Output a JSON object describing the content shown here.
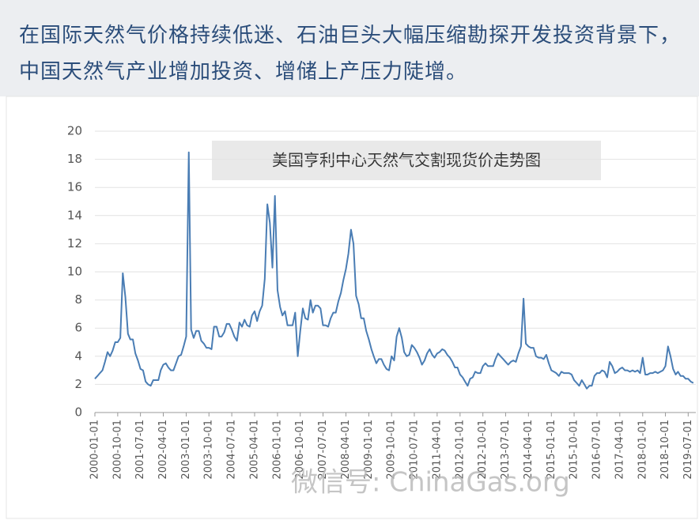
{
  "header": {
    "text": "在国际天然气价格持续低迷、石油巨头大幅压缩勘探开发投资背景下，中国天然气产业增加投资、增储上产压力陡增。"
  },
  "watermark": "微信号: ChinaGas.org",
  "chart_data": {
    "type": "line",
    "title": "美国亨利中心天然气交割现货价走势图",
    "color": "#4a7db4",
    "grid": true,
    "ylim": [
      0,
      20
    ],
    "yticks": [
      0,
      2,
      4,
      6,
      8,
      10,
      12,
      14,
      16,
      18,
      20
    ],
    "xlim": [
      "2000-01-01",
      "2019-10-01"
    ],
    "xticks": [
      "2000-01-01",
      "2000-10-01",
      "2001-07-01",
      "2002-04-01",
      "2003-01-01",
      "2003-10-01",
      "2004-07-01",
      "2005-04-01",
      "2006-01-01",
      "2006-10-01",
      "2007-07-01",
      "2008-04-01",
      "2009-01-01",
      "2009-10-01",
      "2010-07-01",
      "2011-04-01",
      "2012-01-01",
      "2012-10-01",
      "2013-07-01",
      "2014-04-01",
      "2015-01-01",
      "2015-10-01",
      "2016-07-01",
      "2017-04-01",
      "2018-01-01",
      "2018-10-01",
      "2019-07-01"
    ],
    "x": [
      "2000-01-01",
      "2000-02-01",
      "2000-03-01",
      "2000-04-01",
      "2000-05-01",
      "2000-06-01",
      "2000-07-01",
      "2000-08-01",
      "2000-09-01",
      "2000-10-01",
      "2000-11-01",
      "2000-12-01",
      "2001-01-01",
      "2001-02-01",
      "2001-03-01",
      "2001-04-01",
      "2001-05-01",
      "2001-06-01",
      "2001-07-01",
      "2001-08-01",
      "2001-09-01",
      "2001-10-01",
      "2001-11-01",
      "2001-12-01",
      "2002-01-01",
      "2002-02-01",
      "2002-03-01",
      "2002-04-01",
      "2002-05-01",
      "2002-06-01",
      "2002-07-01",
      "2002-08-01",
      "2002-09-01",
      "2002-10-01",
      "2002-11-01",
      "2002-12-01",
      "2003-01-01",
      "2003-02-01",
      "2003-03-01",
      "2003-04-01",
      "2003-05-01",
      "2003-06-01",
      "2003-07-01",
      "2003-08-01",
      "2003-09-01",
      "2003-10-01",
      "2003-11-01",
      "2003-12-01",
      "2004-01-01",
      "2004-02-01",
      "2004-03-01",
      "2004-04-01",
      "2004-05-01",
      "2004-06-01",
      "2004-07-01",
      "2004-08-01",
      "2004-09-01",
      "2004-10-01",
      "2004-11-01",
      "2004-12-01",
      "2005-01-01",
      "2005-02-01",
      "2005-03-01",
      "2005-04-01",
      "2005-05-01",
      "2005-06-01",
      "2005-07-01",
      "2005-08-01",
      "2005-09-01",
      "2005-10-01",
      "2005-11-01",
      "2005-12-01",
      "2006-01-01",
      "2006-02-01",
      "2006-03-01",
      "2006-04-01",
      "2006-05-01",
      "2006-06-01",
      "2006-07-01",
      "2006-08-01",
      "2006-09-01",
      "2006-10-01",
      "2006-11-01",
      "2006-12-01",
      "2007-01-01",
      "2007-02-01",
      "2007-03-01",
      "2007-04-01",
      "2007-05-01",
      "2007-06-01",
      "2007-07-01",
      "2007-08-01",
      "2007-09-01",
      "2007-10-01",
      "2007-11-01",
      "2007-12-01",
      "2008-01-01",
      "2008-02-01",
      "2008-03-01",
      "2008-04-01",
      "2008-05-01",
      "2008-06-01",
      "2008-07-01",
      "2008-08-01",
      "2008-09-01",
      "2008-10-01",
      "2008-11-01",
      "2008-12-01",
      "2009-01-01",
      "2009-02-01",
      "2009-03-01",
      "2009-04-01",
      "2009-05-01",
      "2009-06-01",
      "2009-07-01",
      "2009-08-01",
      "2009-09-01",
      "2009-10-01",
      "2009-11-01",
      "2009-12-01",
      "2010-01-01",
      "2010-02-01",
      "2010-03-01",
      "2010-04-01",
      "2010-05-01",
      "2010-06-01",
      "2010-07-01",
      "2010-08-01",
      "2010-09-01",
      "2010-10-01",
      "2010-11-01",
      "2010-12-01",
      "2011-01-01",
      "2011-02-01",
      "2011-03-01",
      "2011-04-01",
      "2011-05-01",
      "2011-06-01",
      "2011-07-01",
      "2011-08-01",
      "2011-09-01",
      "2011-10-01",
      "2011-11-01",
      "2011-12-01",
      "2012-01-01",
      "2012-02-01",
      "2012-03-01",
      "2012-04-01",
      "2012-05-01",
      "2012-06-01",
      "2012-07-01",
      "2012-08-01",
      "2012-09-01",
      "2012-10-01",
      "2012-11-01",
      "2012-12-01",
      "2013-01-01",
      "2013-02-01",
      "2013-03-01",
      "2013-04-01",
      "2013-05-01",
      "2013-06-01",
      "2013-07-01",
      "2013-08-01",
      "2013-09-01",
      "2013-10-01",
      "2013-11-01",
      "2013-12-01",
      "2014-01-01",
      "2014-02-01",
      "2014-03-01",
      "2014-04-01",
      "2014-05-01",
      "2014-06-01",
      "2014-07-01",
      "2014-08-01",
      "2014-09-01",
      "2014-10-01",
      "2014-11-01",
      "2014-12-01",
      "2015-01-01",
      "2015-02-01",
      "2015-03-01",
      "2015-04-01",
      "2015-05-01",
      "2015-06-01",
      "2015-07-01",
      "2015-08-01",
      "2015-09-01",
      "2015-10-01",
      "2015-11-01",
      "2015-12-01",
      "2016-01-01",
      "2016-02-01",
      "2016-03-01",
      "2016-04-01",
      "2016-05-01",
      "2016-06-01",
      "2016-07-01",
      "2016-08-01",
      "2016-09-01",
      "2016-10-01",
      "2016-11-01",
      "2016-12-01",
      "2017-01-01",
      "2017-02-01",
      "2017-03-01",
      "2017-04-01",
      "2017-05-01",
      "2017-06-01",
      "2017-07-01",
      "2017-08-01",
      "2017-09-01",
      "2017-10-01",
      "2017-11-01",
      "2017-12-01",
      "2018-01-01",
      "2018-02-01",
      "2018-03-01",
      "2018-04-01",
      "2018-05-01",
      "2018-06-01",
      "2018-07-01",
      "2018-08-01",
      "2018-09-01",
      "2018-10-01",
      "2018-11-01",
      "2018-12-01",
      "2019-01-01",
      "2019-02-01",
      "2019-03-01",
      "2019-04-01",
      "2019-05-01",
      "2019-06-01",
      "2019-07-01",
      "2019-08-01",
      "2019-09-01"
    ],
    "values": [
      2.4,
      2.6,
      2.8,
      3.0,
      3.6,
      4.3,
      4.0,
      4.4,
      5.0,
      5.0,
      5.3,
      9.9,
      8.2,
      5.6,
      5.2,
      5.2,
      4.2,
      3.7,
      3.1,
      3.0,
      2.2,
      2.0,
      1.9,
      2.3,
      2.3,
      2.3,
      3.0,
      3.4,
      3.5,
      3.2,
      3.0,
      3.0,
      3.5,
      4.0,
      4.1,
      4.7,
      5.4,
      18.5,
      5.9,
      5.3,
      5.8,
      5.8,
      5.1,
      4.9,
      4.6,
      4.6,
      4.5,
      6.1,
      6.1,
      5.4,
      5.4,
      5.7,
      6.3,
      6.3,
      5.9,
      5.4,
      5.1,
      6.4,
      6.1,
      6.6,
      6.2,
      6.1,
      6.9,
      7.2,
      6.5,
      7.2,
      7.6,
      9.5,
      14.8,
      13.5,
      10.3,
      15.4,
      8.7,
      7.5,
      6.9,
      7.2,
      6.2,
      6.2,
      6.2,
      7.1,
      4.0,
      5.8,
      7.4,
      6.7,
      6.6,
      8.0,
      7.1,
      7.6,
      7.6,
      7.4,
      6.2,
      6.2,
      6.1,
      6.7,
      7.1,
      7.1,
      7.9,
      8.5,
      9.4,
      10.2,
      11.3,
      13.0,
      12.0,
      8.3,
      7.7,
      6.7,
      6.7,
      5.8,
      5.2,
      4.5,
      4.0,
      3.5,
      3.8,
      3.8,
      3.4,
      3.1,
      3.0,
      4.0,
      3.7,
      5.4,
      6.0,
      5.3,
      4.3,
      4.0,
      4.1,
      4.8,
      4.6,
      4.3,
      3.9,
      3.4,
      3.7,
      4.2,
      4.5,
      4.1,
      3.9,
      4.2,
      4.3,
      4.5,
      4.4,
      4.1,
      3.9,
      3.6,
      3.2,
      3.2,
      2.7,
      2.5,
      2.2,
      1.9,
      2.4,
      2.5,
      2.9,
      2.8,
      2.8,
      3.3,
      3.5,
      3.3,
      3.3,
      3.3,
      3.8,
      4.2,
      4.0,
      3.8,
      3.6,
      3.4,
      3.6,
      3.7,
      3.6,
      4.2,
      4.7,
      8.1,
      4.9,
      4.7,
      4.6,
      4.6,
      4.0,
      3.9,
      3.9,
      3.8,
      4.1,
      3.5,
      3.0,
      2.9,
      2.8,
      2.6,
      2.9,
      2.8,
      2.8,
      2.8,
      2.7,
      2.3,
      2.1,
      1.9,
      2.3,
      2.0,
      1.7,
      1.9,
      1.9,
      2.6,
      2.8,
      2.8,
      3.0,
      2.9,
      2.5,
      3.6,
      3.3,
      2.8,
      2.9,
      3.1,
      3.2,
      3.0,
      3.0,
      2.9,
      3.0,
      2.9,
      3.0,
      2.8,
      3.9,
      2.7,
      2.7,
      2.8,
      2.8,
      2.9,
      2.8,
      2.9,
      3.0,
      3.3,
      4.7,
      4.0,
      3.1,
      2.7,
      2.9,
      2.6,
      2.6,
      2.4,
      2.4,
      2.2,
      2.1
    ]
  }
}
